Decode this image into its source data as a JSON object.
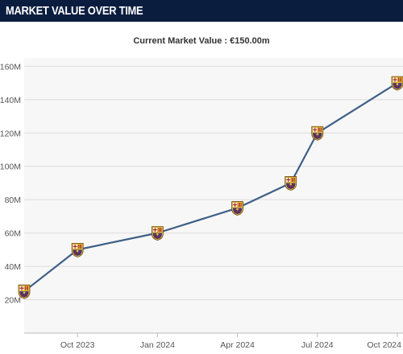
{
  "header": {
    "title": "MARKET VALUE OVER TIME"
  },
  "subtitle": "Current Market Value : €150.00m",
  "colors": {
    "header_bg": "#0b1d3f",
    "line": "#3e5f86",
    "plot_bg": "#f7f7f7",
    "grid": "#dcdcdc",
    "crest_blue": "#1f3f8f",
    "crest_red": "#a3222d",
    "crest_gold": "#e2b43a"
  },
  "marker_icon": "club-crest-icon",
  "chart_data": {
    "type": "line",
    "title": "",
    "xlabel": "",
    "ylabel": "",
    "x_tick_labels": [
      "Oct 2023",
      "Jan 2024",
      "Apr 2024",
      "Jul 2024",
      "Oct 2024"
    ],
    "y_tick_labels": [
      "20M",
      "40M",
      "60M",
      "80M",
      "100M",
      "120M",
      "140M",
      "160M"
    ],
    "ylim": [
      0,
      165
    ],
    "grid": true,
    "legend": "none",
    "series": [
      {
        "x": [
          "Aug 2023",
          "Oct 2023",
          "Jan 2024",
          "Apr 2024",
          "Jun 2024",
          "Jul 2024",
          "Oct 2024"
        ],
        "values": [
          25,
          50,
          60,
          75,
          90,
          120,
          150
        ]
      }
    ]
  }
}
